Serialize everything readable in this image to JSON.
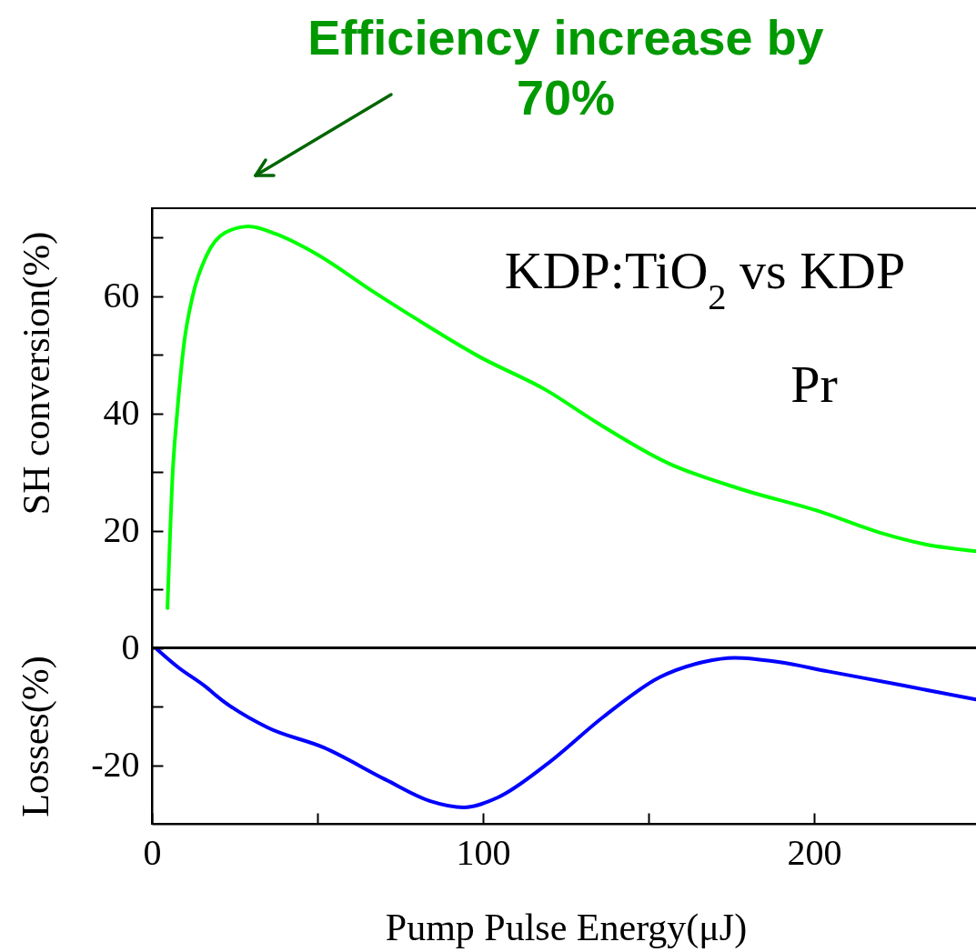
{
  "chart_data": {
    "type": "line",
    "title": "Efficiency increase by 70%",
    "xlabel": "Pump Pulse Energy(μJ)",
    "ylabel": "SH conversion(%)",
    "annotations": [
      "KDP:TiO$_{2}$ vs KDP",
      "Pr",
      "Losses(%)"
    ],
    "xlim": [
      0,
      250
    ],
    "xticks": [
      0,
      {
        "value": 50,
        "label": null
      },
      100,
      {
        "value": 150,
        "label": null
      },
      200
    ],
    "ylim": [
      -30,
      75
    ],
    "yticks": [
      -20,
      {
        "value": -10,
        "label": null
      },
      0,
      {
        "value": 10,
        "label": null
      },
      20,
      {
        "value": 30,
        "label": null
      },
      40,
      {
        "value": 50,
        "label": null
      },
      60,
      {
        "value": 70,
        "label": null
      }
    ],
    "grid": false,
    "ref_lines": [
      {
        "axis": "y",
        "value": 0,
        "color": "#000000"
      }
    ],
    "series": [
      {
        "color": "#00ff00",
        "x": [
          4.7,
          6.3,
          7.7,
          9.8,
          12.3,
          16.4,
          22.3,
          29.2,
          37.5,
          49.4,
          66.8,
          80.5,
          98.8,
          119,
          134.5,
          155.6,
          178.4,
          201,
          219.7,
          233.4,
          248.9
        ],
        "values": [
          6.8,
          30.1,
          40.5,
          52.3,
          60.0,
          66.8,
          70.9,
          71.9,
          70.6,
          67.3,
          60.8,
          55.9,
          49.7,
          44.0,
          38.4,
          31.6,
          27.0,
          23.4,
          19.7,
          17.7,
          16.5
        ]
      },
      {
        "color": "#0000ff",
        "x": [
          1.5,
          7.7,
          16.2,
          20.9,
          35,
          51.9,
          70.7,
          83.9,
          94.2,
          104.5,
          119.6,
          136.5,
          153.4,
          166.6,
          176,
          189.2,
          204.2,
          226.8,
          248.9
        ],
        "values": [
          -0.2,
          -3.2,
          -6.6,
          -8.8,
          -13.6,
          -17.0,
          -22.5,
          -26.1,
          -27.2,
          -25.5,
          -19.7,
          -11.7,
          -5.0,
          -2.4,
          -1.7,
          -2.4,
          -4.0,
          -6.4,
          -8.8
        ]
      }
    ]
  }
}
